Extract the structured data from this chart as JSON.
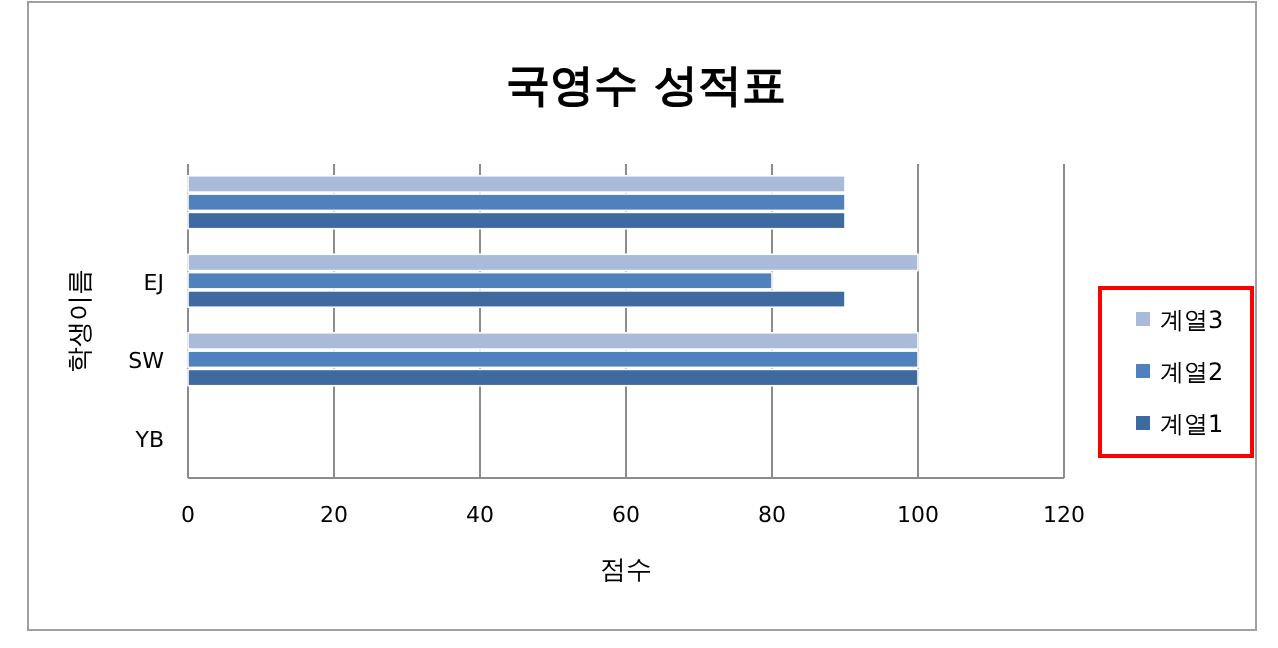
{
  "chart_data": {
    "type": "bar",
    "orientation": "horizontal",
    "title": "국영수 성적표",
    "xlabel": "점수",
    "ylabel": "학생이름",
    "categories": [
      null,
      "EJ",
      "SW",
      "YB"
    ],
    "series": [
      {
        "name": "계열1",
        "color": "#3f6aa0",
        "values": [
          90,
          90,
          100,
          null
        ]
      },
      {
        "name": "계열2",
        "color": "#4f81bd",
        "values": [
          90,
          80,
          100,
          null
        ]
      },
      {
        "name": "계열3",
        "color": "#a9bbd9",
        "values": [
          90,
          100,
          100,
          null
        ]
      }
    ],
    "xlim": [
      0,
      120
    ],
    "xticks": [
      0,
      20,
      40,
      60,
      80,
      100,
      120
    ],
    "grid": "x",
    "legend": "right"
  }
}
